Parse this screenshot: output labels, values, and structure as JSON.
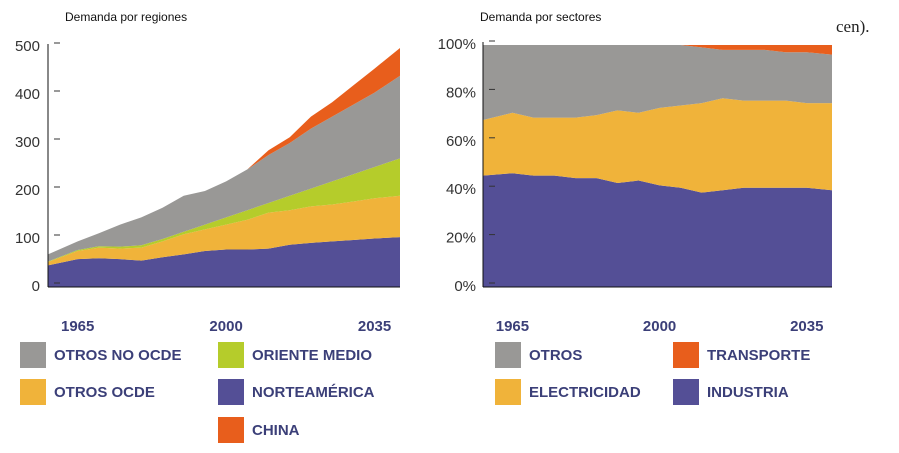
{
  "chart_data": [
    {
      "type": "stacked_area",
      "title": "Demanda por regiones",
      "x": [
        1958,
        1965,
        1970,
        1975,
        1980,
        1985,
        1990,
        1995,
        2000,
        2005,
        2010,
        2015,
        2020,
        2025,
        2030,
        2035,
        2041
      ],
      "xlim": [
        1958,
        2041
      ],
      "xticks": [
        1965,
        2000,
        2035
      ],
      "ylim": [
        0,
        500
      ],
      "yticks": [
        0,
        100,
        200,
        300,
        400,
        500
      ],
      "series": [
        {
          "name": "NORTEAMÉRICA",
          "color": "#544f96",
          "values": [
            45,
            58,
            60,
            58,
            55,
            62,
            68,
            75,
            78,
            78,
            80,
            88,
            92,
            95,
            98,
            101,
            104
          ]
        },
        {
          "name": "OTROS OCDE",
          "color": "#f0b33a",
          "values": [
            7,
            17,
            22,
            22,
            27,
            33,
            42,
            45,
            52,
            62,
            75,
            72,
            76,
            77,
            80,
            84,
            86
          ]
        },
        {
          "name": "ORIENTE MEDIO",
          "color": "#b5cc2b",
          "values": [
            1,
            2,
            3,
            4,
            5,
            5,
            5,
            10,
            15,
            20,
            20,
            30,
            37,
            48,
            57,
            65,
            78
          ]
        },
        {
          "name": "OTROS NO OCDE",
          "color": "#999896",
          "values": [
            15,
            18,
            27,
            46,
            58,
            65,
            75,
            70,
            75,
            85,
            100,
            110,
            125,
            135,
            145,
            155,
            172
          ]
        },
        {
          "name": "CHINA",
          "color": "#e85e1c",
          "values": [
            0,
            0,
            0,
            0,
            0,
            0,
            0,
            0,
            0,
            0,
            10,
            12,
            25,
            30,
            40,
            50,
            58
          ]
        }
      ]
    },
    {
      "type": "stacked_area",
      "title": "Demanda por sectores",
      "annotation": "cen).",
      "x": [
        1958,
        1965,
        1970,
        1975,
        1980,
        1985,
        1990,
        1995,
        2000,
        2005,
        2010,
        2015,
        2020,
        2025,
        2030,
        2035,
        2041
      ],
      "xlim": [
        1958,
        2041
      ],
      "xticks": [
        1965,
        2000,
        2035
      ],
      "ylim": [
        0,
        100
      ],
      "yticks": [
        {
          "value": 0,
          "label": "0%"
        },
        {
          "value": 20,
          "label": "20%"
        },
        {
          "value": 40,
          "label": "40%"
        },
        {
          "value": 60,
          "label": "60%"
        },
        {
          "value": 80,
          "label": "80%"
        },
        {
          "value": 100,
          "label": "100%"
        }
      ],
      "series": [
        {
          "name": "INDUSTRIA",
          "color": "#544f96",
          "values": [
            46,
            47,
            46,
            46,
            45,
            45,
            43,
            44,
            42,
            41,
            39,
            40,
            41,
            41,
            41,
            41,
            40
          ]
        },
        {
          "name": "ELECTRICIDAD",
          "color": "#f0b33a",
          "values": [
            23,
            25,
            24,
            24,
            25,
            26,
            30,
            28,
            32,
            34,
            37,
            38,
            36,
            36,
            36,
            35,
            36
          ]
        },
        {
          "name": "OTROS",
          "color": "#999896",
          "values": [
            31,
            28,
            30,
            30,
            30,
            29,
            27,
            28,
            26,
            25,
            23,
            20,
            21,
            21,
            20,
            21,
            20
          ]
        },
        {
          "name": "TRANSPORTE",
          "color": "#e85e1c",
          "values": [
            0,
            0,
            0,
            0,
            0,
            0,
            0,
            0,
            0,
            0,
            1,
            2,
            2,
            2,
            3,
            3,
            4
          ]
        }
      ]
    }
  ]
}
